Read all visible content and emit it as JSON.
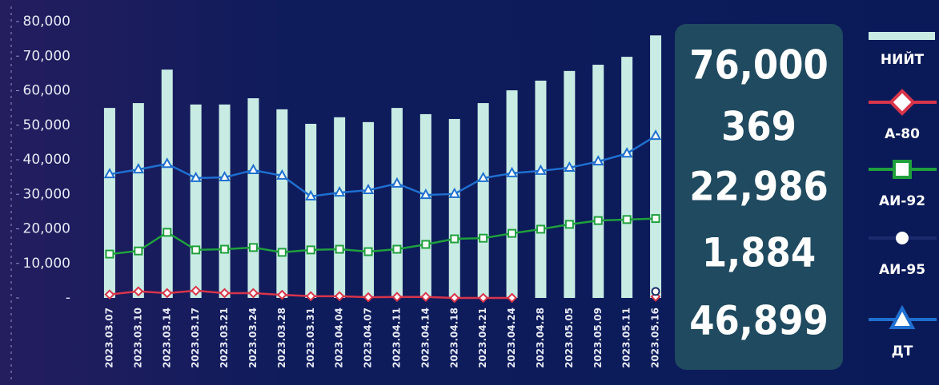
{
  "chart_data": {
    "type": "bar-line",
    "categories": [
      "2023.03.07",
      "2023.03.10",
      "2023.03.14",
      "2023.03.17",
      "2023.03.21",
      "2023.03.24",
      "2023.03.28",
      "2023.03.31",
      "2023.04.04",
      "2023.04.07",
      "2023.04.11",
      "2023.04.14",
      "2023.04.18",
      "2023.04.21",
      "2023.04.24",
      "2023.04.28",
      "2023.05.05",
      "2023.05.09",
      "2023.05.11",
      "2023.05.16"
    ],
    "ylim": [
      0,
      80000
    ],
    "yticks": [
      {
        "value": 0,
        "label": "-"
      },
      {
        "value": 10000,
        "label": "10,000"
      },
      {
        "value": 20000,
        "label": "20,000"
      },
      {
        "value": 30000,
        "label": "30,000"
      },
      {
        "value": 40000,
        "label": "40,000"
      },
      {
        "value": 50000,
        "label": "50,000"
      },
      {
        "value": 60000,
        "label": "60,000"
      },
      {
        "value": 70000,
        "label": "70,000"
      },
      {
        "value": 80000,
        "label": "80,000"
      }
    ],
    "series": [
      {
        "name": "НИЙТ",
        "kind": "bar",
        "color": "#c8ece4",
        "values": [
          55000,
          56400,
          66100,
          56000,
          56000,
          57800,
          54600,
          50400,
          52300,
          50900,
          55000,
          53200,
          51800,
          56400,
          60100,
          62900,
          65700,
          67500,
          69800,
          76000
        ],
        "value_labels": [
          null,
          null,
          null,
          null,
          null,
          null,
          null,
          null,
          null,
          null,
          null,
          null,
          null,
          null,
          null,
          null,
          null,
          null,
          null,
          "76,000"
        ]
      },
      {
        "name": "А-80",
        "kind": "line",
        "marker": "diamond",
        "color": "#d9344a",
        "values": [
          1000,
          1900,
          1400,
          2100,
          1400,
          1400,
          900,
          500,
          500,
          200,
          300,
          300,
          0,
          0,
          0,
          null,
          null,
          null,
          null,
          369
        ],
        "value_labels": [
          null,
          null,
          null,
          null,
          null,
          null,
          null,
          null,
          null,
          null,
          null,
          null,
          null,
          null,
          null,
          null,
          null,
          null,
          null,
          "369"
        ]
      },
      {
        "name": "АИ-92",
        "kind": "line",
        "marker": "square",
        "color": "#1fa03c",
        "values": [
          12700,
          13600,
          19000,
          13900,
          14100,
          14600,
          13200,
          13900,
          14100,
          13400,
          14100,
          15500,
          17100,
          17300,
          18700,
          19900,
          21300,
          22400,
          22700,
          22986
        ],
        "value_labels": [
          null,
          null,
          null,
          null,
          null,
          null,
          null,
          null,
          null,
          null,
          null,
          null,
          null,
          null,
          null,
          null,
          null,
          null,
          null,
          "22,986"
        ]
      },
      {
        "name": "АИ-95",
        "kind": "line",
        "marker": "circle",
        "color": "#1b2a6b",
        "values": [
          null,
          null,
          null,
          null,
          null,
          null,
          null,
          null,
          null,
          null,
          null,
          null,
          null,
          null,
          null,
          null,
          null,
          null,
          null,
          1884
        ],
        "value_labels": [
          null,
          null,
          null,
          null,
          null,
          null,
          null,
          null,
          null,
          null,
          null,
          null,
          null,
          null,
          null,
          null,
          null,
          null,
          null,
          "1,884"
        ]
      },
      {
        "name": "ДТ",
        "kind": "line",
        "marker": "triangle",
        "color": "#1f6fd0",
        "values": [
          35800,
          37200,
          38800,
          34700,
          34900,
          37000,
          35400,
          29400,
          30500,
          31200,
          33100,
          29800,
          30100,
          34700,
          36100,
          36800,
          37700,
          39500,
          41800,
          46899
        ],
        "value_labels": [
          null,
          null,
          null,
          null,
          null,
          null,
          null,
          null,
          null,
          null,
          null,
          null,
          null,
          null,
          null,
          null,
          null,
          null,
          null,
          "46,899"
        ]
      }
    ]
  }
}
